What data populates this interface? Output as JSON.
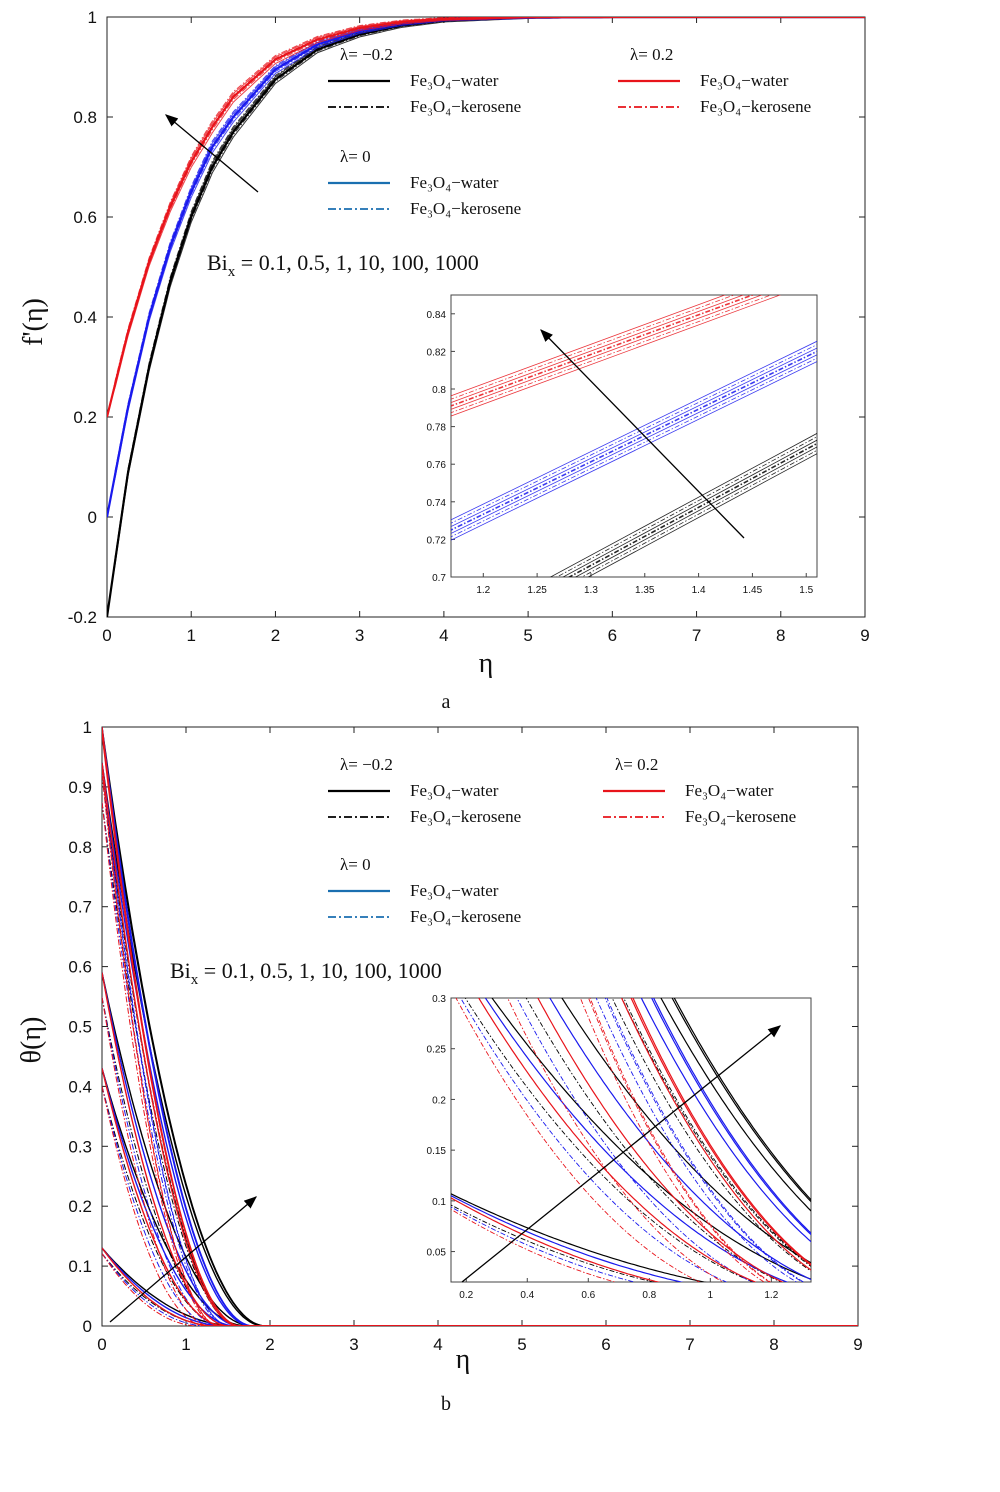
{
  "figure": {
    "sublabels": [
      "a",
      "b"
    ]
  },
  "chart_data": [
    {
      "type": "line",
      "panel": "a",
      "ylabel": "f'(η)",
      "xlabel": "η",
      "xlim": [
        0,
        9
      ],
      "ylim": [
        -0.2,
        1
      ],
      "xticks": [
        "0",
        "1",
        "2",
        "3",
        "4",
        "5",
        "6",
        "7",
        "8",
        "9"
      ],
      "yticks": [
        "-0.2",
        "0",
        "0.2",
        "0.4",
        "0.6",
        "0.8",
        "1"
      ],
      "annotation": "Bi_x = 0.1, 0.5, 1, 10, 100, 1000",
      "annotation_main": "Bi",
      "annotation_sub": "x",
      "annotation_rest": " = 0.1, 0.5, 1, 10, 100, 1000",
      "legend": [
        {
          "group": "λ= −0.2",
          "entries": [
            {
              "label": "Fe₃O₄−water",
              "color": "#000000",
              "style": "solid"
            },
            {
              "label": "Fe₃O₄−kerosene",
              "color": "#000000",
              "style": "dashdot"
            }
          ]
        },
        {
          "group": "λ= 0.2",
          "entries": [
            {
              "label": "Fe₃O₄−water",
              "color": "#e8141b",
              "style": "solid"
            },
            {
              "label": "Fe₃O₄−kerosene",
              "color": "#e8141b",
              "style": "dashdot"
            }
          ]
        },
        {
          "group": "λ= 0",
          "entries": [
            {
              "label": "Fe₃O₄−water",
              "color": "#1a6fb0",
              "style": "solid"
            },
            {
              "label": "Fe₃O₄−kerosene",
              "color": "#1a6fb0",
              "style": "dashdot"
            }
          ]
        }
      ],
      "series": [
        {
          "lambda": -0.2,
          "color": "#000000",
          "x": [
            0,
            0.25,
            0.5,
            0.75,
            1,
            1.25,
            1.5,
            2,
            2.5,
            3,
            3.5,
            4,
            5,
            6,
            7,
            8,
            9
          ],
          "y": [
            -0.2,
            0.09,
            0.3,
            0.47,
            0.6,
            0.7,
            0.77,
            0.875,
            0.935,
            0.965,
            0.983,
            0.993,
            0.999,
            1,
            1,
            1,
            1
          ]
        },
        {
          "lambda": 0,
          "color": "#1a1aee",
          "x": [
            0,
            0.25,
            0.5,
            0.75,
            1,
            1.25,
            1.5,
            2,
            2.5,
            3,
            3.5,
            4,
            5,
            6,
            7,
            8,
            9
          ],
          "y": [
            0,
            0.22,
            0.4,
            0.54,
            0.65,
            0.74,
            0.8,
            0.895,
            0.945,
            0.972,
            0.987,
            0.995,
            0.999,
            1,
            1,
            1,
            1
          ]
        },
        {
          "lambda": 0.2,
          "color": "#e8141b",
          "x": [
            0,
            0.25,
            0.5,
            0.75,
            1,
            1.25,
            1.5,
            2,
            2.5,
            3,
            3.5,
            4,
            5,
            6,
            7,
            8,
            9
          ],
          "y": [
            0.2,
            0.37,
            0.51,
            0.62,
            0.71,
            0.78,
            0.84,
            0.915,
            0.955,
            0.978,
            0.99,
            0.996,
            1,
            1,
            1,
            1,
            1
          ]
        }
      ],
      "inset": {
        "xlim": [
          1.17,
          1.51
        ],
        "ylim": [
          0.7,
          0.85
        ],
        "xticks": [
          "1.2",
          "1.25",
          "1.3",
          "1.35",
          "1.4",
          "1.45",
          "1.5"
        ],
        "yticks": [
          "0.7",
          "0.72",
          "0.74",
          "0.76",
          "0.78",
          "0.8",
          "0.82",
          "0.84"
        ],
        "series": [
          {
            "lambda": 0.2,
            "color": "#e8141b",
            "x": [
              1.17,
              1.45
            ],
            "y": [
              0.791,
              0.85
            ]
          },
          {
            "lambda": 0,
            "color": "#1a1aee",
            "x": [
              1.17,
              1.51
            ],
            "y": [
              0.725,
              0.82
            ]
          },
          {
            "lambda": -0.2,
            "color": "#000000",
            "x": [
              1.28,
              1.51
            ],
            "y": [
              0.7,
              0.771
            ]
          }
        ]
      }
    },
    {
      "type": "line",
      "panel": "b",
      "ylabel": "θ(η)",
      "xlabel": "η",
      "xlim": [
        0,
        9
      ],
      "ylim": [
        0,
        1
      ],
      "xticks": [
        "0",
        "1",
        "2",
        "3",
        "4",
        "5",
        "6",
        "7",
        "8",
        "9"
      ],
      "yticks": [
        "0",
        "0.1",
        "0.2",
        "0.3",
        "0.4",
        "0.5",
        "0.6",
        "0.7",
        "0.8",
        "0.9",
        "1"
      ],
      "annotation": "Bi_x = 0.1, 0.5, 1, 10, 100, 1000",
      "annotation_main": "Bi",
      "annotation_sub": "x",
      "annotation_rest": " = 0.1, 0.5, 1, 10, 100, 1000",
      "legend": [
        {
          "group": "λ= −0.2",
          "entries": [
            {
              "label": "Fe₃O₄−water",
              "color": "#000000",
              "style": "solid"
            },
            {
              "label": "Fe₃O₄−kerosene",
              "color": "#000000",
              "style": "dashdot"
            }
          ]
        },
        {
          "group": "λ= 0.2",
          "entries": [
            {
              "label": "Fe₃O₄−water",
              "color": "#e8141b",
              "style": "solid"
            },
            {
              "label": "Fe₃O₄−kerosene",
              "color": "#e8141b",
              "style": "dashdot"
            }
          ]
        },
        {
          "group": "λ= 0",
          "entries": [
            {
              "label": "Fe₃O₄−water",
              "color": "#1a6fb0",
              "style": "solid"
            },
            {
              "label": "Fe₃O₄−kerosene",
              "color": "#1a6fb0",
              "style": "dashdot"
            }
          ]
        }
      ],
      "theta0": [
        0.13,
        0.43,
        0.59,
        0.94,
        0.99,
        1.0
      ],
      "inset": {
        "xlim": [
          0.15,
          1.33
        ],
        "ylim": [
          0.02,
          0.3
        ],
        "xticks": [
          "0.2",
          "0.4",
          "0.6",
          "0.8",
          "1",
          "1.2"
        ],
        "yticks": [
          "0.05",
          "0.1",
          "0.15",
          "0.2",
          "0.25",
          "0.3"
        ]
      }
    }
  ]
}
